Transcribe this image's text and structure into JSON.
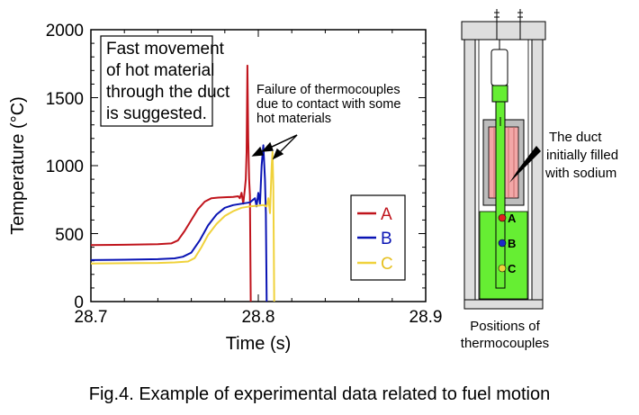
{
  "chart_data": {
    "type": "line",
    "xlabel": "Time (s)",
    "ylabel": "Temperature (°C)",
    "xlim": [
      28.7,
      28.9
    ],
    "ylim": [
      0,
      2000
    ],
    "x_ticks": [
      "28.7",
      "28.8",
      "28.9"
    ],
    "y_ticks": [
      "0",
      "500",
      "1000",
      "1500",
      "2000"
    ],
    "legend_position": "right",
    "series": [
      {
        "name": "A",
        "color": "#c0141c",
        "points": [
          [
            28.7,
            415
          ],
          [
            28.72,
            418
          ],
          [
            28.74,
            422
          ],
          [
            28.748,
            428
          ],
          [
            28.752,
            450
          ],
          [
            28.756,
            520
          ],
          [
            28.76,
            600
          ],
          [
            28.764,
            680
          ],
          [
            28.768,
            735
          ],
          [
            28.772,
            760
          ],
          [
            28.776,
            765
          ],
          [
            28.785,
            770
          ],
          [
            28.788,
            775
          ],
          [
            28.789,
            760
          ],
          [
            28.79,
            800
          ],
          [
            28.791,
            720
          ],
          [
            28.792,
            830
          ],
          [
            28.7925,
            900
          ],
          [
            28.793,
            1100
          ],
          [
            28.7935,
            1736
          ],
          [
            28.794,
            1200
          ],
          [
            28.7945,
            900
          ],
          [
            28.795,
            780
          ],
          [
            28.7955,
            0
          ]
        ]
      },
      {
        "name": "B",
        "color": "#0a14b4",
        "points": [
          [
            28.7,
            305
          ],
          [
            28.72,
            308
          ],
          [
            28.74,
            312
          ],
          [
            28.75,
            318
          ],
          [
            28.755,
            330
          ],
          [
            28.76,
            360
          ],
          [
            28.765,
            450
          ],
          [
            28.77,
            560
          ],
          [
            28.775,
            640
          ],
          [
            28.78,
            690
          ],
          [
            28.785,
            710
          ],
          [
            28.79,
            720
          ],
          [
            28.795,
            730
          ],
          [
            28.798,
            760
          ],
          [
            28.799,
            700
          ],
          [
            28.8,
            800
          ],
          [
            28.801,
            720
          ],
          [
            28.802,
            1000
          ],
          [
            28.803,
            1150
          ],
          [
            28.804,
            900
          ],
          [
            28.8045,
            650
          ],
          [
            28.805,
            0
          ]
        ]
      },
      {
        "name": "C",
        "color": "#f0d23c",
        "points": [
          [
            28.7,
            280
          ],
          [
            28.72,
            282
          ],
          [
            28.74,
            284
          ],
          [
            28.75,
            288
          ],
          [
            28.758,
            295
          ],
          [
            28.762,
            320
          ],
          [
            28.766,
            400
          ],
          [
            28.77,
            490
          ],
          [
            28.775,
            570
          ],
          [
            28.78,
            630
          ],
          [
            28.785,
            665
          ],
          [
            28.79,
            690
          ],
          [
            28.795,
            700
          ],
          [
            28.8,
            705
          ],
          [
            28.803,
            710
          ],
          [
            28.805,
            700
          ],
          [
            28.806,
            760
          ],
          [
            28.807,
            650
          ],
          [
            28.808,
            1000
          ],
          [
            28.8085,
            1100
          ],
          [
            28.809,
            850
          ],
          [
            28.8095,
            0
          ]
        ]
      }
    ],
    "annotations": [
      {
        "lines": [
          "Fast movement",
          "of hot material",
          "through the duct",
          "is suggested."
        ]
      },
      {
        "lines": [
          "Failure of thermocouples",
          "due to contact with some",
          "hot materials"
        ]
      }
    ]
  },
  "diagram": {
    "duct_label": [
      "The duct",
      "initially filled",
      "with sodium"
    ],
    "positions_label": [
      "Positions of",
      "thermocouples"
    ],
    "thermocouples": [
      {
        "label": "A",
        "color": "#e02020"
      },
      {
        "label": "B",
        "color": "#1c28c8"
      },
      {
        "label": "C",
        "color": "#f0d23c"
      }
    ]
  },
  "caption": "Fig.4. Example of experimental data related to fuel motion"
}
